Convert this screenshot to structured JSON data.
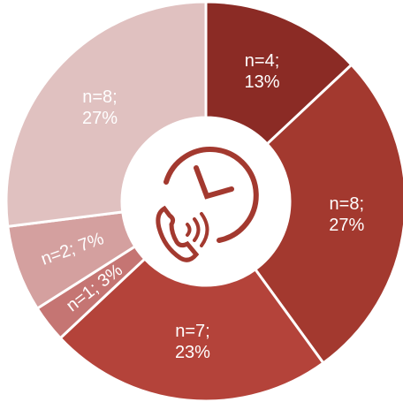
{
  "chart_data": {
    "type": "donut",
    "values": [
      13,
      27,
      23,
      3,
      7,
      27
    ],
    "value_labels": [
      "n=4;\n13%",
      "n=8;\n27%",
      "n=7;\n23%",
      "n=1; 3%",
      "n=2; 7%",
      "n=8;\n27%"
    ],
    "colors": [
      "#8b2b25",
      "#a3392f",
      "#b4433a",
      "#c57573",
      "#d4a09f",
      "#e0c1c0"
    ]
  }
}
